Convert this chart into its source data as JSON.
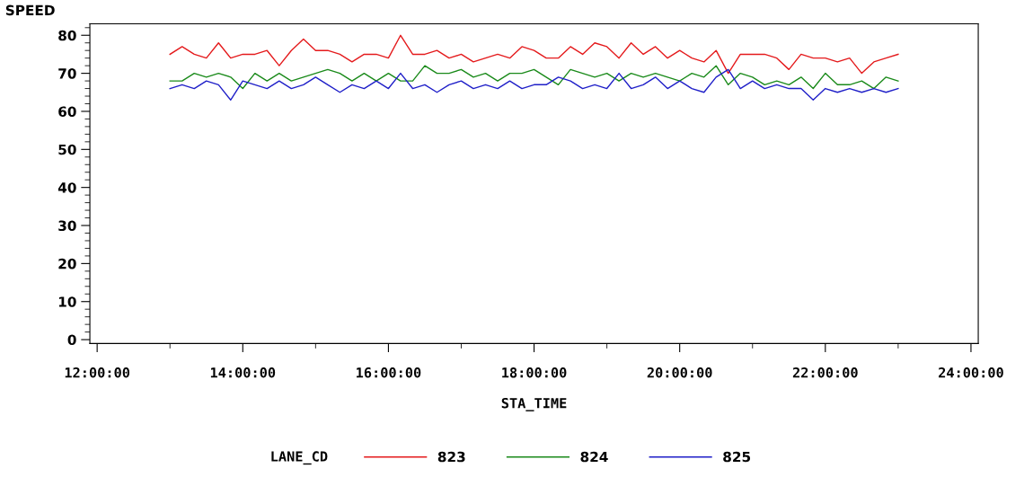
{
  "chart_data": {
    "type": "line",
    "xlabel": "STA_TIME",
    "ylabel": "SPEED",
    "legend_title": "LANE_CD",
    "legend": "bottom",
    "grid": false,
    "marker": "none",
    "line_style": "solid",
    "x": [
      13.0,
      13.1667,
      13.3333,
      13.5,
      13.6667,
      13.8333,
      14.0,
      14.1667,
      14.3333,
      14.5,
      14.6667,
      14.8333,
      15.0,
      15.1667,
      15.3333,
      15.5,
      15.6667,
      15.8333,
      16.0,
      16.1667,
      16.3333,
      16.5,
      16.6667,
      16.8333,
      17.0,
      17.1667,
      17.3333,
      17.5,
      17.6667,
      17.8333,
      18.0,
      18.1667,
      18.3333,
      18.5,
      18.6667,
      18.8333,
      19.0,
      19.1667,
      19.3333,
      19.5,
      19.6667,
      19.8333,
      20.0,
      20.1667,
      20.3333,
      20.5,
      20.6667,
      20.8333,
      21.0,
      21.1667,
      21.3333,
      21.5,
      21.6667,
      21.8333,
      22.0,
      22.1667,
      22.3333,
      22.5,
      22.6667,
      22.8333,
      23.0
    ],
    "xlim": [
      11.9,
      24.1
    ],
    "xticks": [
      {
        "value": 12,
        "label": "12:00:00"
      },
      {
        "value": 14,
        "label": "14:00:00"
      },
      {
        "value": 16,
        "label": "16:00:00"
      },
      {
        "value": 18,
        "label": "18:00:00"
      },
      {
        "value": 20,
        "label": "20:00:00"
      },
      {
        "value": 22,
        "label": "22:00:00"
      },
      {
        "value": 24,
        "label": "24:00:00"
      }
    ],
    "ylim": [
      -1,
      83
    ],
    "yticks": [
      0,
      10,
      20,
      30,
      40,
      50,
      60,
      70,
      80
    ],
    "series": [
      {
        "name": "823",
        "color": "#e41a1c",
        "values": [
          75,
          77,
          75,
          74,
          78,
          74,
          75,
          75,
          76,
          72,
          76,
          79,
          76,
          76,
          75,
          73,
          75,
          75,
          74,
          80,
          75,
          75,
          76,
          74,
          75,
          73,
          74,
          75,
          74,
          77,
          76,
          74,
          74,
          77,
          75,
          78,
          77,
          74,
          78,
          75,
          77,
          74,
          76,
          74,
          73,
          76,
          70,
          75,
          75,
          75,
          74,
          71,
          75,
          74,
          74,
          73,
          74,
          70,
          73,
          74,
          75
        ]
      },
      {
        "name": "824",
        "color": "#1a8a1a",
        "values": [
          68,
          68,
          70,
          69,
          70,
          69,
          66,
          70,
          68,
          70,
          68,
          69,
          70,
          71,
          70,
          68,
          70,
          68,
          70,
          68,
          68,
          72,
          70,
          70,
          71,
          69,
          70,
          68,
          70,
          70,
          71,
          69,
          67,
          71,
          70,
          69,
          70,
          68,
          70,
          69,
          70,
          69,
          68,
          70,
          69,
          72,
          67,
          70,
          69,
          67,
          68,
          67,
          69,
          66,
          70,
          67,
          67,
          68,
          66,
          69,
          68
        ]
      },
      {
        "name": "825",
        "color": "#1f1fc8",
        "values": [
          66,
          67,
          66,
          68,
          67,
          63,
          68,
          67,
          66,
          68,
          66,
          67,
          69,
          67,
          65,
          67,
          66,
          68,
          66,
          70,
          66,
          67,
          65,
          67,
          68,
          66,
          67,
          66,
          68,
          66,
          67,
          67,
          69,
          68,
          66,
          67,
          66,
          70,
          66,
          67,
          69,
          66,
          68,
          66,
          65,
          69,
          71,
          66,
          68,
          66,
          67,
          66,
          66,
          63,
          66,
          65,
          66,
          65,
          66,
          65,
          66
        ]
      }
    ]
  }
}
